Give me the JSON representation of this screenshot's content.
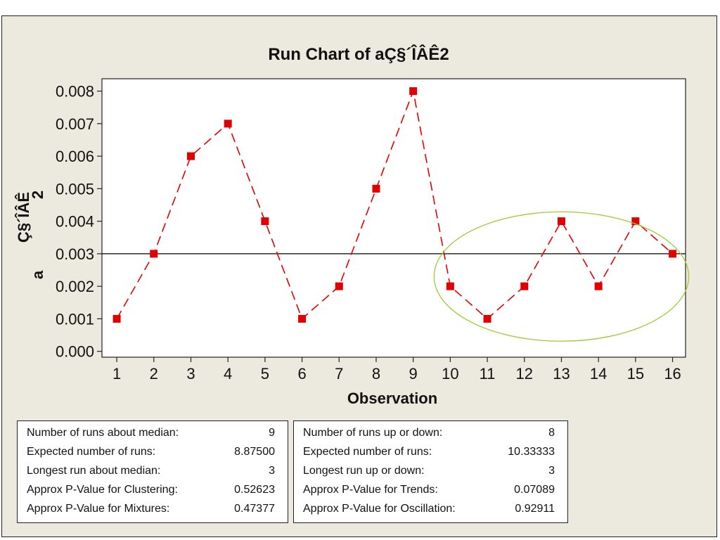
{
  "chart_data": {
    "type": "line",
    "title": "Run Chart of aÇ§´ÎÂÊ2",
    "xlabel": "Observation",
    "ylabel_main": "Ç§´ÎÂÊ",
    "ylabel_a": "a",
    "ylabel_sub": "2",
    "x": [
      1,
      2,
      3,
      4,
      5,
      6,
      7,
      8,
      9,
      10,
      11,
      12,
      13,
      14,
      15,
      16
    ],
    "values": [
      0.001,
      0.003,
      0.006,
      0.007,
      0.004,
      0.001,
      0.002,
      0.005,
      0.008,
      0.002,
      0.001,
      0.002,
      0.004,
      0.002,
      0.004,
      0.003
    ],
    "median": 0.003,
    "xlim": [
      0.6,
      16.35
    ],
    "ylim": [
      -0.00018,
      0.00838
    ],
    "yticks": [
      "0.000",
      "0.001",
      "0.002",
      "0.003",
      "0.004",
      "0.005",
      "0.006",
      "0.007",
      "0.008"
    ],
    "yticks_values": [
      0,
      0.001,
      0.002,
      0.003,
      0.004,
      0.005,
      0.006,
      0.007,
      0.008
    ],
    "xticks": [
      "1",
      "2",
      "3",
      "4",
      "5",
      "6",
      "7",
      "8",
      "9",
      "10",
      "11",
      "12",
      "13",
      "14",
      "15",
      "16"
    ],
    "grid": false,
    "legend": "none",
    "series_color": "#e00000",
    "median_color": "#000000",
    "highlight_color": "#9acd32",
    "highlight_x_range": [
      10,
      16
    ]
  },
  "stats_left": [
    {
      "label": "Number of runs about median:",
      "value": "9"
    },
    {
      "label": "Expected number of runs:",
      "value": "8.87500"
    },
    {
      "label": "Longest run about median:",
      "value": "3"
    },
    {
      "label": "Approx P-Value for Clustering:",
      "value": "0.52623"
    },
    {
      "label": "Approx P-Value for Mixtures:",
      "value": "0.47377"
    }
  ],
  "stats_right": [
    {
      "label": "Number of runs up or down:",
      "value": "8"
    },
    {
      "label": "Expected number of runs:",
      "value": "10.33333"
    },
    {
      "label": "Longest run up or down:",
      "value": "3"
    },
    {
      "label": "Approx P-Value for Trends:",
      "value": "0.07089"
    },
    {
      "label": "Approx P-Value for Oscillation:",
      "value": "0.92911"
    }
  ]
}
